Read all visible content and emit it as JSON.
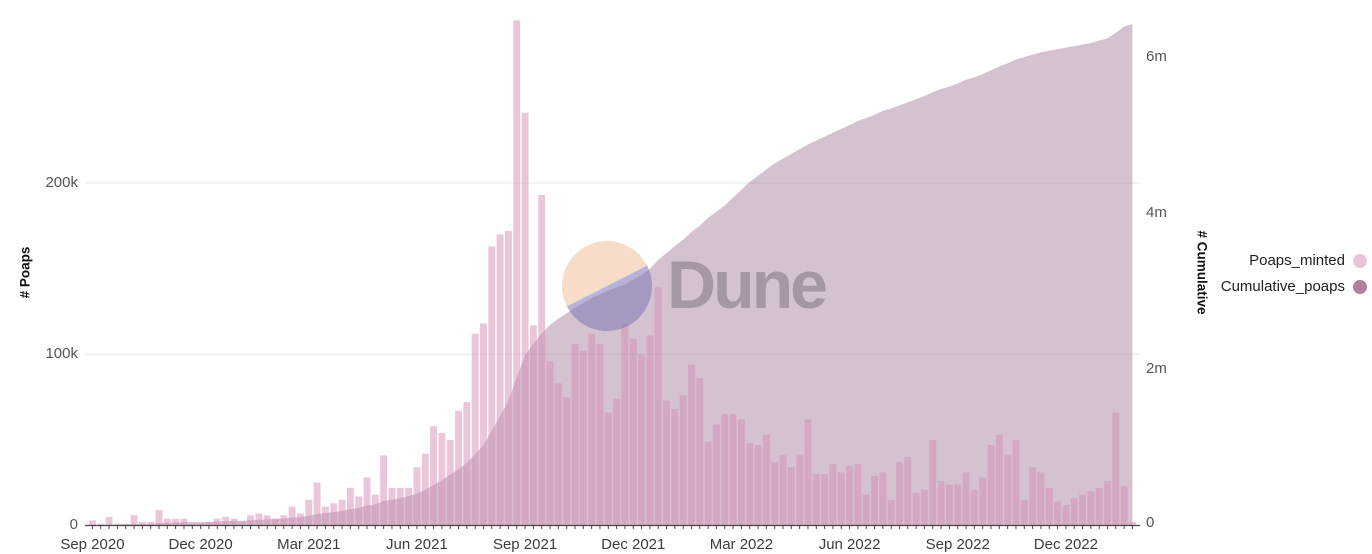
{
  "watermark": {
    "text": "Dune",
    "circle_top_color": "#f6d9c4",
    "circle_bottom_color": "#7d76b4"
  },
  "legend": {
    "items": [
      {
        "label": "Poaps_minted",
        "color": "#eac3d9"
      },
      {
        "label": "Cumulative_poaps",
        "color": "#b07f9b"
      }
    ]
  },
  "chart_data": {
    "type": "bar",
    "title": "",
    "x": {
      "unit": "week",
      "start": "Sep 2020",
      "end": "Feb 2023",
      "tick_labels": [
        "Sep 2020",
        "Dec 2020",
        "Mar 2021",
        "Jun 2021",
        "Sep 2021",
        "Dec 2021",
        "Mar 2022",
        "Jun 2022",
        "Sep 2022",
        "Dec 2022"
      ],
      "tick_bar_indices": [
        0,
        13,
        26,
        39,
        52,
        65,
        78,
        91,
        104,
        117
      ]
    },
    "left_axis": {
      "label": "# Poaps",
      "tick_labels": [
        "0",
        "100k",
        "200k"
      ],
      "tick_values_thousands": [
        0,
        100,
        200
      ],
      "range_thousands": [
        0,
        307
      ]
    },
    "right_axis": {
      "label": "# Cumulative",
      "tick_labels": [
        "0",
        "2m",
        "4m",
        "6m"
      ],
      "tick_values_thousands": [
        0,
        2000,
        4000,
        6000
      ],
      "range_thousands": [
        0,
        6730
      ]
    },
    "grid": "horizontal",
    "legend_position": "right",
    "series": [
      {
        "name": "Poaps_minted",
        "type": "bar",
        "axis": "left",
        "unit": "thousands",
        "values": [
          3,
          1,
          5,
          1,
          1,
          6,
          2,
          2,
          9,
          4,
          4,
          4,
          1,
          1,
          2,
          4,
          5,
          4,
          2,
          6,
          7,
          6,
          4,
          6,
          11,
          7,
          15,
          25,
          11,
          13,
          15,
          22,
          17,
          28,
          18,
          41,
          22,
          22,
          22,
          34,
          42,
          58,
          54,
          50,
          67,
          72,
          112,
          118,
          163,
          170,
          172,
          295,
          241,
          117,
          193,
          96,
          83,
          75,
          106,
          102,
          112,
          106,
          66,
          74,
          118,
          109,
          100,
          111,
          139,
          73,
          68,
          76,
          94,
          86,
          49,
          59,
          65,
          65,
          62,
          48,
          47,
          53,
          37,
          41,
          34,
          41,
          62,
          30,
          30,
          36,
          31,
          35,
          36,
          18,
          29,
          31,
          15,
          37,
          40,
          19,
          21,
          50,
          26,
          24,
          24,
          31,
          21,
          28,
          47,
          53,
          41,
          50,
          15,
          34,
          31,
          22,
          14,
          12,
          16,
          18,
          20,
          22,
          26,
          66,
          23,
          2
        ]
      },
      {
        "name": "Cumulative_poaps",
        "type": "area",
        "axis": "right",
        "unit": "thousands",
        "values": [
          3,
          4,
          9,
          10,
          11,
          17,
          19,
          21,
          30,
          34,
          38,
          42,
          43,
          44,
          46,
          50,
          55,
          59,
          61,
          67,
          74,
          80,
          84,
          90,
          101,
          108,
          123,
          148,
          159,
          172,
          187,
          209,
          226,
          254,
          272,
          313,
          330,
          352,
          374,
          408,
          460,
          520,
          580,
          650,
          720,
          800,
          912,
          1030,
          1220,
          1400,
          1600,
          1900,
          2180,
          2330,
          2460,
          2570,
          2650,
          2720,
          2790,
          2850,
          2910,
          2960,
          3010,
          3050,
          3090,
          3150,
          3210,
          3290,
          3400,
          3490,
          3580,
          3660,
          3760,
          3840,
          3940,
          4020,
          4100,
          4200,
          4300,
          4400,
          4480,
          4560,
          4640,
          4700,
          4760,
          4820,
          4880,
          4930,
          4980,
          5030,
          5080,
          5130,
          5180,
          5220,
          5260,
          5310,
          5340,
          5380,
          5420,
          5460,
          5500,
          5550,
          5590,
          5620,
          5660,
          5710,
          5740,
          5780,
          5830,
          5880,
          5920,
          5970,
          6000,
          6030,
          6060,
          6080,
          6100,
          6120,
          6140,
          6160,
          6180,
          6210,
          6240,
          6310,
          6390,
          6420
        ]
      }
    ]
  },
  "colors": {
    "bar_fill": "rgba(216,139,181,0.5)",
    "area_fill": "rgba(154,110,143,0.42)",
    "gridline": "#ececec",
    "axis_line": "#454545",
    "tick_text": "#555555",
    "x_tick_text": "#3d3d3d"
  }
}
